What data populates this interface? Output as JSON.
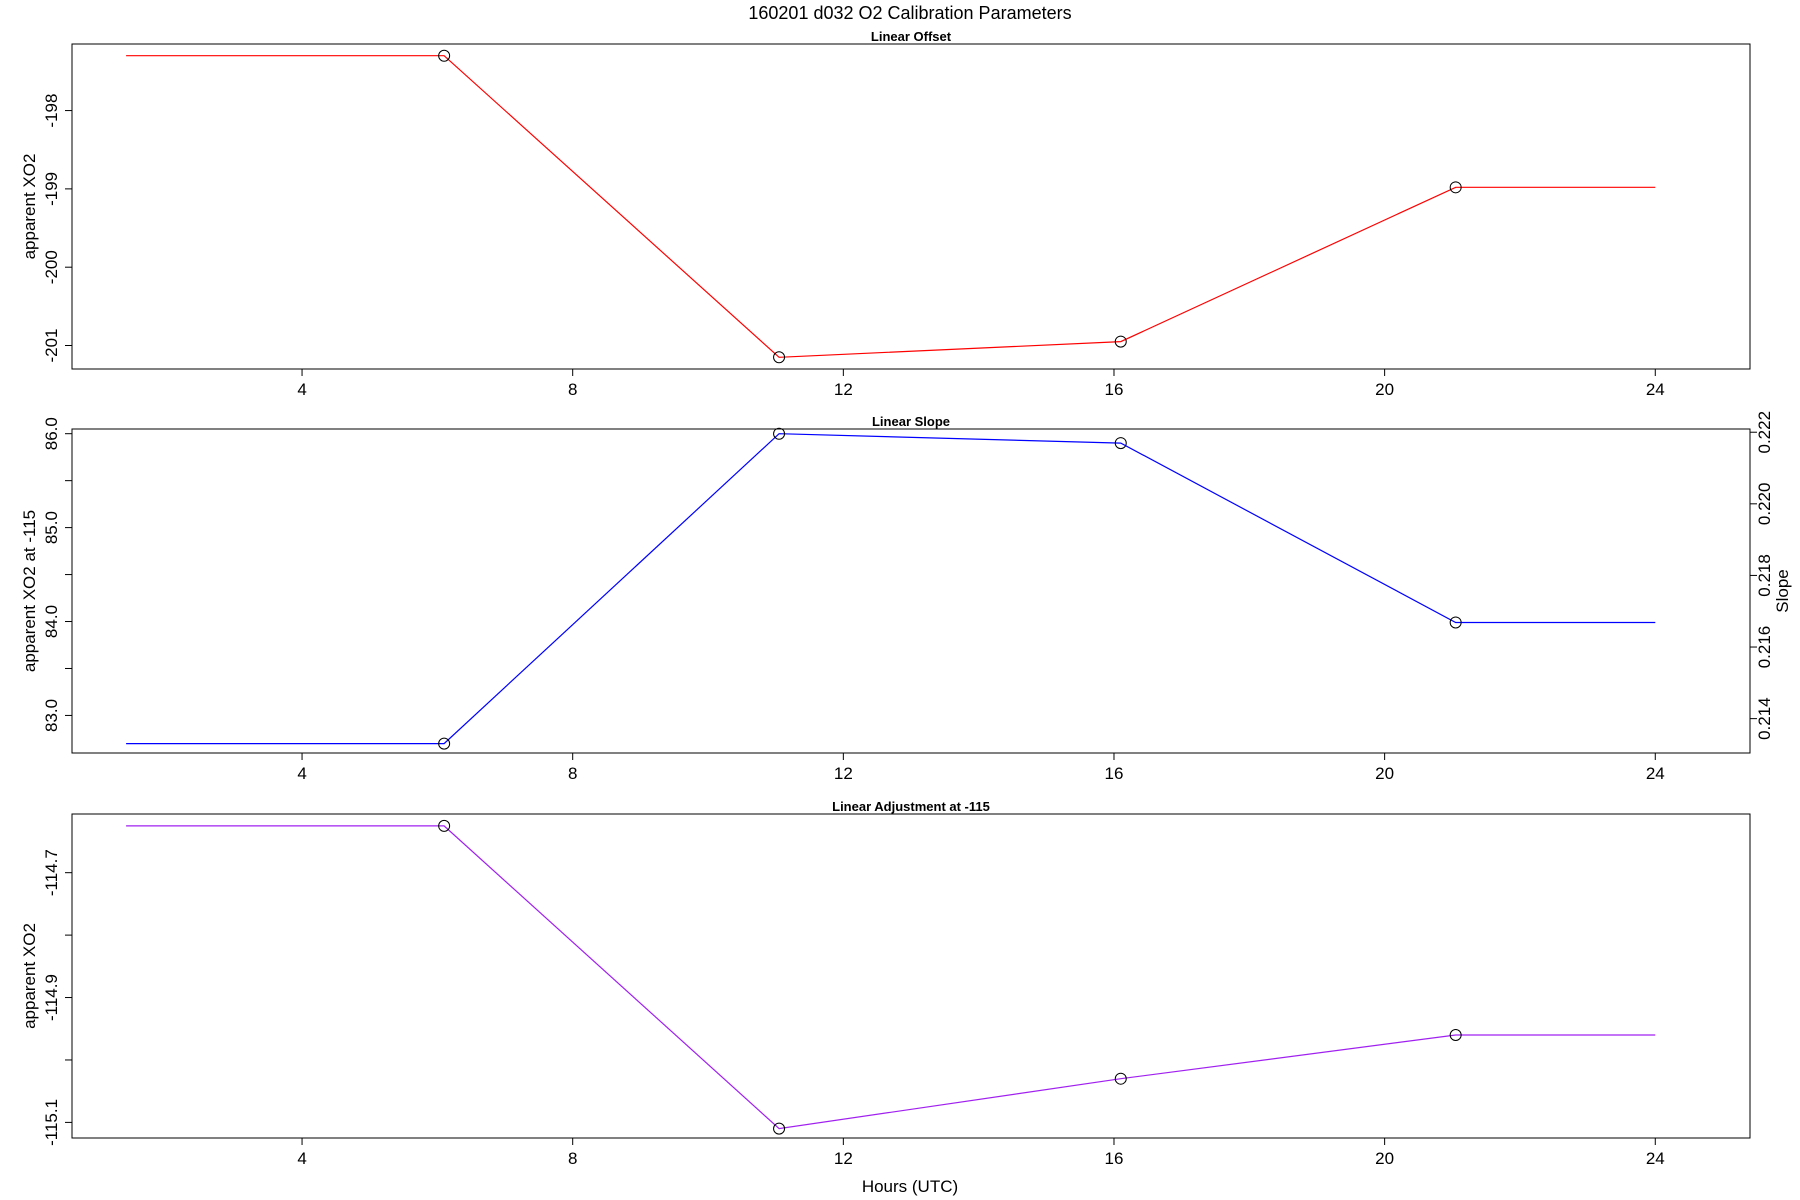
{
  "figure": {
    "title": "160201   d032   O2 Calibration Parameters",
    "xlabel": "Hours (UTC)"
  },
  "chart_data": [
    {
      "type": "line",
      "title": "Linear Offset",
      "xlabel": "",
      "ylabel": "apparent XO2",
      "xlim": [
        0.6,
        25.4
      ],
      "ylim": [
        -201.3,
        -197.15
      ],
      "x_ticks": [
        4,
        8,
        12,
        16,
        20,
        24
      ],
      "y_ticks": [
        -201,
        -200,
        -199,
        -198
      ],
      "y_tick_labels": [
        "-201",
        "-200",
        "-199",
        "-198"
      ],
      "color": "#ff0000",
      "line": {
        "x": [
          1.4,
          6.1,
          11.05,
          16.1,
          21.05,
          24
        ],
        "y": [
          -197.3,
          -197.3,
          -201.15,
          -200.95,
          -198.98,
          -198.98
        ]
      },
      "points": {
        "x": [
          6.1,
          11.05,
          16.1,
          21.05
        ],
        "y": [
          -197.3,
          -201.15,
          -200.95,
          -198.98
        ]
      }
    },
    {
      "type": "line",
      "title": "Linear Slope",
      "xlabel": "",
      "ylabel": "apparent XO2 at -115",
      "ylabel_right": "Slope",
      "xlim": [
        0.6,
        25.4
      ],
      "ylim": [
        82.6,
        86.05
      ],
      "x_ticks": [
        4,
        8,
        12,
        16,
        20,
        24
      ],
      "y_ticks": [
        83.0,
        83.5,
        84.0,
        84.5,
        85.0,
        85.5,
        86.0
      ],
      "y_tick_labels": [
        "83.0",
        "",
        "84.0",
        "",
        "85.0",
        "",
        "86.0"
      ],
      "y2_lim": [
        0.21304,
        0.22209
      ],
      "y2_ticks": [
        0.214,
        0.216,
        0.218,
        0.22,
        0.222
      ],
      "y2_tick_labels": [
        "0.214",
        "0.216",
        "0.218",
        "0.220",
        "0.222"
      ],
      "color": "#0000ff",
      "line": {
        "x": [
          1.4,
          6.1,
          11.05,
          16.1,
          21.05,
          24
        ],
        "y": [
          82.7,
          82.7,
          86.0,
          85.9,
          83.99,
          83.99
        ]
      },
      "points": {
        "x": [
          6.1,
          11.05,
          16.1,
          21.05
        ],
        "y": [
          82.7,
          86.0,
          85.9,
          83.99
        ]
      }
    },
    {
      "type": "line",
      "title": "Linear Adjustment at -115",
      "xlabel": "Hours (UTC)",
      "ylabel": "apparent XO2",
      "xlim": [
        0.6,
        25.4
      ],
      "ylim": [
        -115.125,
        -114.606
      ],
      "x_ticks": [
        4,
        8,
        12,
        16,
        20,
        24
      ],
      "y_ticks": [
        -115.1,
        -115.0,
        -114.9,
        -114.8,
        -114.7
      ],
      "y_tick_labels": [
        "-115.1",
        "",
        "-114.9",
        "",
        "-114.7"
      ],
      "color": "#a020f0",
      "line": {
        "x": [
          1.4,
          6.1,
          11.05,
          16.1,
          21.05,
          24
        ],
        "y": [
          -114.625,
          -114.625,
          -115.11,
          -115.03,
          -114.96,
          -114.96
        ]
      },
      "points": {
        "x": [
          6.1,
          11.05,
          16.1,
          21.05
        ],
        "y": [
          -114.625,
          -115.11,
          -115.03,
          -114.96
        ]
      }
    }
  ]
}
